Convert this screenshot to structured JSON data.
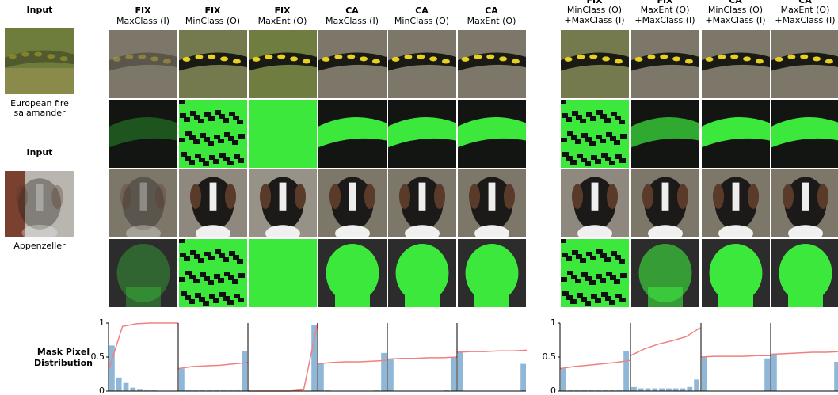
{
  "figure": {
    "inputs": [
      {
        "heading": "Input",
        "caption": [
          "European fire",
          "salamander"
        ]
      },
      {
        "heading": "Input",
        "caption": [
          "Appenzeller"
        ]
      }
    ],
    "columns": [
      {
        "method": "FIX",
        "objective": "MaxClass (I)"
      },
      {
        "method": "FIX",
        "objective": "MinClass (O)"
      },
      {
        "method": "FIX",
        "objective": "MaxEnt (O)"
      },
      {
        "method": "CA",
        "objective": "MaxClass (I)"
      },
      {
        "method": "CA",
        "objective": "MinClass (O)"
      },
      {
        "method": "CA",
        "objective": "MaxEnt (O)"
      }
    ],
    "combined_columns": [
      {
        "method": "FIX",
        "objective": "MinClass (O)",
        "objective2": "+MaxClass (I)"
      },
      {
        "method": "FIX",
        "objective": "MaxEnt (O)",
        "objective2": "+MaxClass (I)"
      },
      {
        "method": "CA",
        "objective": "MinClass (O)",
        "objective2": "+MaxClass (I)"
      },
      {
        "method": "CA",
        "objective": "MaxEnt (O)",
        "objective2": "+MaxClass (I)"
      }
    ],
    "histograms": {
      "type": "bar",
      "label": [
        "Mask Pixel",
        "Distribution"
      ],
      "ylim": [
        0,
        1
      ],
      "yticks": [
        0,
        0.5,
        1
      ],
      "bar_color": "#8fb8d8",
      "cdf_color": "#f08080",
      "panels": [
        {
          "bars": [
            0.67,
            0.2,
            0.12,
            0.05,
            0.02,
            0.01,
            0.01,
            0,
            0,
            0
          ],
          "cdf": [
            0.3,
            0.95,
            0.99,
            1,
            1,
            1
          ]
        },
        {
          "bars": [
            0.33,
            0.01,
            0.01,
            0.01,
            0.01,
            0.01,
            0.01,
            0.01,
            0.01,
            0.59
          ],
          "cdf": [
            0.33,
            0.36,
            0.37,
            0.38,
            0.4,
            0.42
          ]
        },
        {
          "bars": [
            0,
            0,
            0,
            0,
            0,
            0,
            0,
            0,
            0,
            0.97
          ],
          "cdf": [
            0,
            0,
            0,
            0,
            0.02,
            1
          ]
        },
        {
          "bars": [
            0.4,
            0.01,
            0,
            0,
            0,
            0,
            0,
            0,
            0.01,
            0.56
          ],
          "cdf": [
            0.4,
            0.42,
            0.43,
            0.43,
            0.44,
            0.45
          ]
        },
        {
          "bars": [
            0.47,
            0,
            0,
            0,
            0,
            0,
            0,
            0,
            0.01,
            0.5
          ],
          "cdf": [
            0.47,
            0.48,
            0.48,
            0.49,
            0.49,
            0.5
          ]
        },
        {
          "bars": [
            0.57,
            0,
            0,
            0,
            0,
            0,
            0,
            0,
            0,
            0.4
          ],
          "cdf": [
            0.57,
            0.58,
            0.58,
            0.59,
            0.59,
            0.6
          ]
        },
        {
          "bars": [
            0.33,
            0.01,
            0.01,
            0.01,
            0.01,
            0.01,
            0.01,
            0.01,
            0.01,
            0.59
          ],
          "cdf": [
            0.33,
            0.36,
            0.38,
            0.4,
            0.42,
            0.45
          ]
        },
        {
          "bars": [
            0.06,
            0.04,
            0.04,
            0.04,
            0.04,
            0.04,
            0.04,
            0.04,
            0.06,
            0.17
          ],
          "cdf": [
            0.52,
            0.62,
            0.69,
            0.74,
            0.8,
            0.93
          ]
        },
        {
          "bars": [
            0.5,
            0,
            0,
            0,
            0,
            0,
            0,
            0,
            0,
            0.48
          ],
          "cdf": [
            0.5,
            0.51,
            0.51,
            0.51,
            0.52,
            0.52
          ]
        },
        {
          "bars": [
            0.54,
            0,
            0,
            0,
            0,
            0,
            0,
            0,
            0,
            0.43
          ],
          "cdf": [
            0.54,
            0.55,
            0.56,
            0.57,
            0.57,
            0.58
          ]
        }
      ]
    }
  }
}
